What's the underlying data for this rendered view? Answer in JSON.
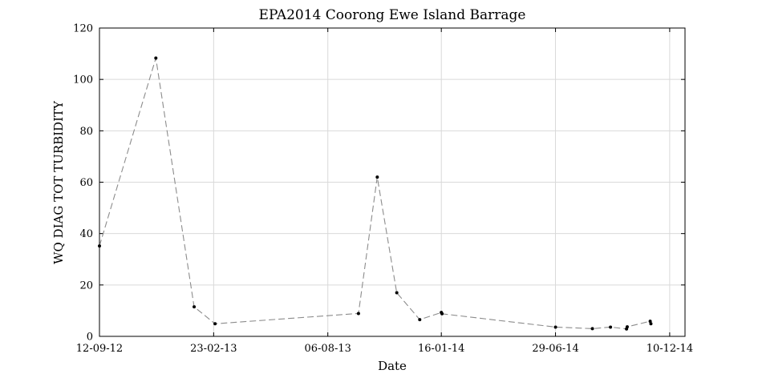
{
  "chart_data": {
    "type": "line",
    "title": "EPA2014 Coorong Ewe Island Barrage",
    "xlabel": "Date",
    "ylabel": "WQ DIAG TOT TURBIDITY",
    "ylim": [
      0,
      120
    ],
    "yticks": [
      0,
      20,
      40,
      60,
      80,
      100,
      120
    ],
    "xlim": [
      "2012-09-12",
      "2015-01-01"
    ],
    "xticks": [
      {
        "date": "2012-09-12",
        "label": "12-09-12"
      },
      {
        "date": "2013-02-23",
        "label": "23-02-13"
      },
      {
        "date": "2013-08-06",
        "label": "06-08-13"
      },
      {
        "date": "2014-01-16",
        "label": "16-01-14"
      },
      {
        "date": "2014-06-29",
        "label": "29-06-14"
      },
      {
        "date": "2014-12-10",
        "label": "10-12-14"
      }
    ],
    "grid": true,
    "series": [
      {
        "line_color": "#8c8c8c",
        "marker_color": "#000000",
        "points": [
          {
            "x": "2012-09-12",
            "y": 35.2
          },
          {
            "x": "2012-12-02",
            "y": 108.3
          },
          {
            "x": "2013-01-26",
            "y": 11.5
          },
          {
            "x": "2013-02-25",
            "y": 4.9
          },
          {
            "x": "2013-09-19",
            "y": 8.9
          },
          {
            "x": "2013-10-16",
            "y": 62.0
          },
          {
            "x": "2013-11-13",
            "y": 17.0
          },
          {
            "x": "2013-12-16",
            "y": 6.5
          },
          {
            "x": "2014-01-16",
            "y": 9.3
          },
          {
            "x": "2014-01-17",
            "y": 8.8
          },
          {
            "x": "2014-06-29",
            "y": 3.6
          },
          {
            "x": "2014-08-21",
            "y": 3.0
          },
          {
            "x": "2014-09-16",
            "y": 3.6
          },
          {
            "x": "2014-10-09",
            "y": 2.9
          },
          {
            "x": "2014-10-10",
            "y": 3.7
          },
          {
            "x": "2014-11-12",
            "y": 5.9
          },
          {
            "x": "2014-11-13",
            "y": 4.9
          }
        ]
      }
    ]
  }
}
